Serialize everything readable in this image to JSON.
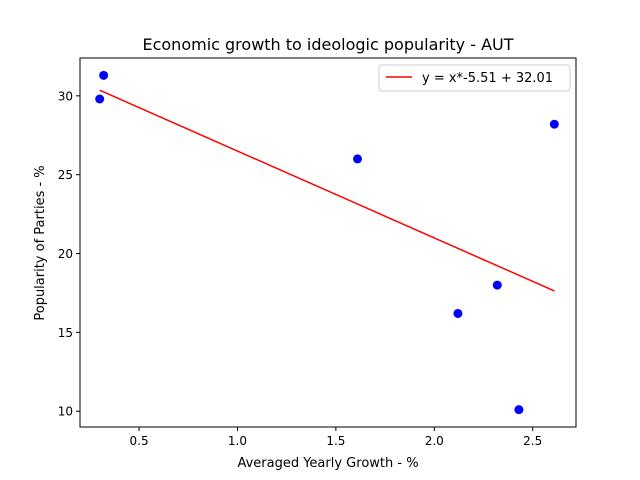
{
  "chart_data": {
    "type": "scatter",
    "title": "Economic growth to ideologic popularity - AUT",
    "xlabel": "Averaged Yearly Growth - %",
    "ylabel": "Popularity of Parties - %",
    "xlim": [
      0.2,
      2.72
    ],
    "ylim": [
      9.0,
      32.4
    ],
    "xticks": [
      0.5,
      1.0,
      1.5,
      2.0,
      2.5
    ],
    "xtick_labels": [
      "0.5",
      "1.0",
      "1.5",
      "2.0",
      "2.5"
    ],
    "yticks": [
      10,
      15,
      20,
      25,
      30
    ],
    "ytick_labels": [
      "10",
      "15",
      "20",
      "25",
      "30"
    ],
    "grid": false,
    "legend_position": "upper right",
    "points": {
      "color": "#0000ff",
      "x": [
        0.3,
        0.32,
        1.61,
        2.12,
        2.32,
        2.43,
        2.61
      ],
      "y": [
        29.8,
        31.3,
        26.0,
        16.2,
        18.0,
        10.1,
        28.2
      ]
    },
    "fit_line": {
      "label": "y = x*-5.51 + 32.01",
      "color": "#ff0000",
      "slope": -5.51,
      "intercept": 32.01,
      "x_range": [
        0.3,
        2.61
      ]
    }
  }
}
